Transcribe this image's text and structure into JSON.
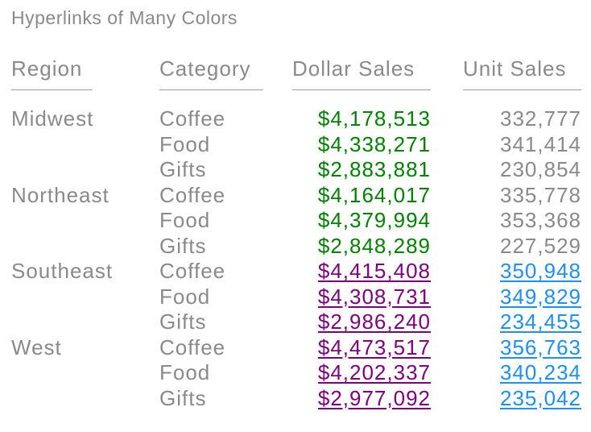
{
  "title": "Hyperlinks of Many Colors",
  "colors": {
    "text_gray": "#8a8a8a",
    "header_rule": "#9b9b9b",
    "dollar_green": "#018101",
    "dollar_link_purple": "#800080",
    "unit_link_blue": "#1e8fff"
  },
  "chart_data": {
    "type": "table",
    "title": "Hyperlinks of Many Colors",
    "columns": [
      "Region",
      "Category",
      "Dollar Sales",
      "Unit Sales"
    ],
    "rows": [
      {
        "region": "Midwest",
        "category": "Coffee",
        "dollar_sales": "$4,178,513",
        "unit_sales": "332,777",
        "hyperlinked": false
      },
      {
        "region": "",
        "category": "Food",
        "dollar_sales": "$4,338,271",
        "unit_sales": "341,414",
        "hyperlinked": false
      },
      {
        "region": "",
        "category": "Gifts",
        "dollar_sales": "$2,883,881",
        "unit_sales": "230,854",
        "hyperlinked": false
      },
      {
        "region": "Northeast",
        "category": "Coffee",
        "dollar_sales": "$4,164,017",
        "unit_sales": "335,778",
        "hyperlinked": false
      },
      {
        "region": "",
        "category": "Food",
        "dollar_sales": "$4,379,994",
        "unit_sales": "353,368",
        "hyperlinked": false
      },
      {
        "region": "",
        "category": "Gifts",
        "dollar_sales": "$2,848,289",
        "unit_sales": "227,529",
        "hyperlinked": false
      },
      {
        "region": "Southeast",
        "category": "Coffee",
        "dollar_sales": "$4,415,408",
        "unit_sales": "350,948",
        "hyperlinked": true
      },
      {
        "region": "",
        "category": "Food",
        "dollar_sales": "$4,308,731",
        "unit_sales": "349,829",
        "hyperlinked": true
      },
      {
        "region": "",
        "category": "Gifts",
        "dollar_sales": "$2,986,240",
        "unit_sales": "234,455",
        "hyperlinked": true
      },
      {
        "region": "West",
        "category": "Coffee",
        "dollar_sales": "$4,473,517",
        "unit_sales": "356,763",
        "hyperlinked": true
      },
      {
        "region": "",
        "category": "Food",
        "dollar_sales": "$4,202,337",
        "unit_sales": "340,234",
        "hyperlinked": true
      },
      {
        "region": "",
        "category": "Gifts",
        "dollar_sales": "$2,977,092",
        "unit_sales": "235,042",
        "hyperlinked": true
      }
    ]
  }
}
